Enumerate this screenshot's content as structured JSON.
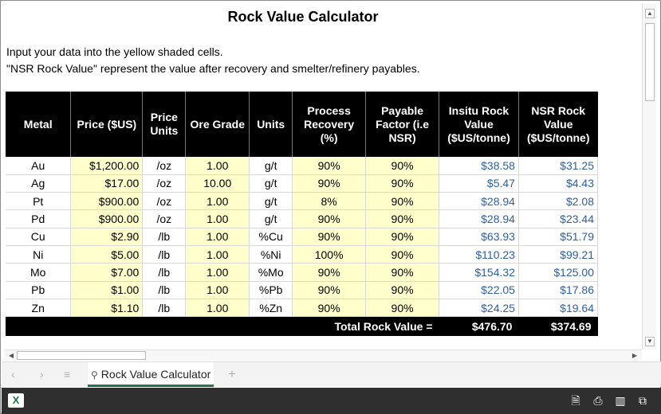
{
  "title": "Rock Value Calculator",
  "instructions": [
    "Input your data into the yellow shaded cells.",
    "\"NSR Rock Value\" represent the value after recovery and smelter/refinery payables."
  ],
  "table": {
    "headers": [
      "Metal",
      "Price ($US)",
      "Price Units",
      "Ore Grade",
      "Units",
      "Process Recovery (%)",
      "Payable Factor (i.e NSR)",
      "Insitu Rock Value ($US/tonne)",
      "NSR Rock Value ($US/tonne)"
    ],
    "rows": [
      {
        "metal": "Au",
        "price": "$1,200.00",
        "price_units": "/oz",
        "grade": "1.00",
        "units": "g/t",
        "recovery": "90%",
        "payable": "90%",
        "insitu": "$38.58",
        "nsr": "$31.25"
      },
      {
        "metal": "Ag",
        "price": "$17.00",
        "price_units": "/oz",
        "grade": "10.00",
        "units": "g/t",
        "recovery": "90%",
        "payable": "90%",
        "insitu": "$5.47",
        "nsr": "$4.43"
      },
      {
        "metal": "Pt",
        "price": "$900.00",
        "price_units": "/oz",
        "grade": "1.00",
        "units": "g/t",
        "recovery": "8%",
        "payable": "90%",
        "insitu": "$28.94",
        "nsr": "$2.08"
      },
      {
        "metal": "Pd",
        "price": "$900.00",
        "price_units": "/oz",
        "grade": "1.00",
        "units": "g/t",
        "recovery": "90%",
        "payable": "90%",
        "insitu": "$28.94",
        "nsr": "$23.44"
      },
      {
        "metal": "Cu",
        "price": "$2.90",
        "price_units": "/lb",
        "grade": "1.00",
        "units": "%Cu",
        "recovery": "90%",
        "payable": "90%",
        "insitu": "$63.93",
        "nsr": "$51.79"
      },
      {
        "metal": "Ni",
        "price": "$5.00",
        "price_units": "/lb",
        "grade": "1.00",
        "units": "%Ni",
        "recovery": "100%",
        "payable": "90%",
        "insitu": "$110.23",
        "nsr": "$99.21"
      },
      {
        "metal": "Mo",
        "price": "$7.00",
        "price_units": "/lb",
        "grade": "1.00",
        "units": "%Mo",
        "recovery": "90%",
        "payable": "90%",
        "insitu": "$154.32",
        "nsr": "$125.00"
      },
      {
        "metal": "Pb",
        "price": "$1.00",
        "price_units": "/lb",
        "grade": "1.00",
        "units": "%Pb",
        "recovery": "90%",
        "payable": "90%",
        "insitu": "$22.05",
        "nsr": "$17.86"
      },
      {
        "metal": "Zn",
        "price": "$1.10",
        "price_units": "/lb",
        "grade": "1.00",
        "units": "%Zn",
        "recovery": "90%",
        "payable": "90%",
        "insitu": "$24.25",
        "nsr": "$19.64"
      }
    ],
    "total": {
      "label": "Total Rock Value =",
      "insitu": "$476.70",
      "nsr": "$374.69"
    }
  },
  "sheet_tab": {
    "label": "Rock Value Calculator",
    "icon": "person-icon"
  },
  "nav": {
    "prev": "‹",
    "next": "›",
    "menu": "≡",
    "add": "+"
  },
  "colors": {
    "input_yellow": "#ffffcc",
    "value_blue": "#2e5fa3",
    "header_black": "#000000",
    "status_bar": "#2f2f2f",
    "tab_accent": "#217346"
  },
  "status_bar": {
    "app_icon": "excel-icon",
    "icons": [
      "document-icon",
      "print-icon",
      "book-icon",
      "popout-icon"
    ]
  }
}
